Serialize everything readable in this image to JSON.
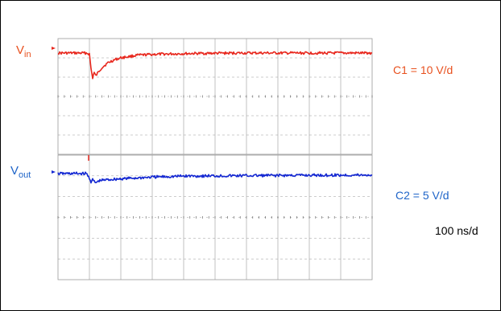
{
  "colors": {
    "ch1": "#e8281e",
    "ch2": "#1428d2",
    "ch1_label": "#e8501e",
    "ch2_label": "#1e64c8",
    "grid": "#999999",
    "text": "#000000"
  },
  "labels": {
    "vin_main": "V",
    "vin_sub": "in",
    "vout_main": "V",
    "vout_sub": "out",
    "c1_scale": "C1 = 10 V/d",
    "c2_scale": "C2 = 5 V/d",
    "timebase": "100 ns/d"
  },
  "chart_data": [
    {
      "type": "line",
      "title": "",
      "series": [
        {
          "name": "Vin",
          "color": "#e8281e"
        }
      ],
      "x_unit": "ns",
      "x_divisions": 10,
      "y_divisions": 4,
      "volts_per_div": 10,
      "ns_per_div": 100,
      "x": [
        0,
        60,
        90,
        100,
        105,
        110,
        115,
        120,
        130,
        140,
        160,
        180,
        200,
        250,
        300,
        400,
        500,
        600,
        700,
        800,
        900,
        1000
      ],
      "y_div": [
        0.0,
        0.0,
        0.0,
        -0.05,
        -0.8,
        -1.3,
        -1.0,
        -1.2,
        -0.95,
        -0.75,
        -0.5,
        -0.35,
        -0.25,
        -0.12,
        -0.07,
        -0.03,
        -0.01,
        0.0,
        0.0,
        0.0,
        0.0,
        0.0
      ]
    },
    {
      "type": "line",
      "title": "",
      "series": [
        {
          "name": "Vout",
          "color": "#1428d2"
        }
      ],
      "x_unit": "ns",
      "x_divisions": 10,
      "y_divisions": 4,
      "volts_per_div": 5,
      "ns_per_div": 100,
      "x": [
        0,
        60,
        90,
        100,
        105,
        110,
        120,
        130,
        150,
        200,
        300,
        400,
        600,
        800,
        1000
      ],
      "y_div": [
        0.0,
        0.0,
        0.0,
        -0.2,
        -0.4,
        -0.3,
        -0.45,
        -0.35,
        -0.3,
        -0.25,
        -0.17,
        -0.12,
        -0.1,
        -0.08,
        -0.07
      ]
    }
  ]
}
